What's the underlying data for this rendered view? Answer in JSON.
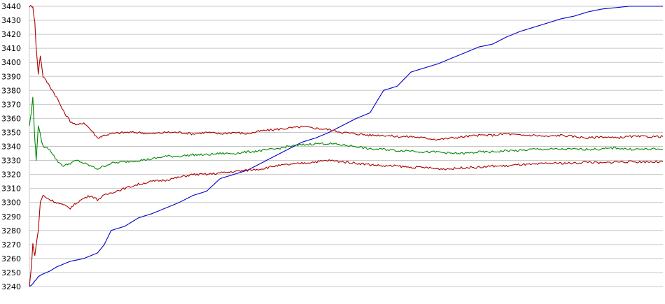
{
  "chart_data": {
    "type": "line",
    "title": "",
    "xlabel": "",
    "ylabel": "",
    "ylim": [
      3240,
      3440
    ],
    "y_ticks": [
      "3440",
      "3430",
      "3420",
      "3410",
      "3400",
      "3390",
      "3380",
      "3370",
      "3360",
      "3350",
      "3340",
      "3330",
      "3320",
      "3310",
      "3300",
      "3290",
      "3280",
      "3270",
      "3260",
      "3250",
      "3240"
    ],
    "grid": "horizontal",
    "legend": "none",
    "x": [
      0,
      3,
      5,
      8,
      10,
      13,
      16,
      20,
      30,
      40,
      50,
      60,
      70,
      80,
      90,
      100,
      110,
      120,
      140,
      160,
      180,
      200,
      220,
      240,
      260,
      280,
      300,
      320,
      340,
      360,
      380,
      400,
      420,
      440,
      460,
      480,
      500,
      520,
      540,
      560,
      580,
      600,
      620,
      640,
      660,
      680,
      700,
      720,
      740,
      760,
      780,
      800,
      820,
      840,
      860,
      880,
      900,
      930
    ],
    "series": [
      {
        "color": "#0000cc",
        "values": [
          3240,
          3241,
          3242,
          3244,
          3245,
          3247,
          3248,
          3249,
          3251,
          3254,
          3256,
          3258,
          3259,
          3260,
          3262,
          3264,
          3270,
          3280,
          3283,
          3289,
          3292,
          3296,
          3300,
          3305,
          3308,
          3317,
          3320,
          3323,
          3328,
          3333,
          3338,
          3343,
          3346,
          3350,
          3355,
          3360,
          3364,
          3380,
          3383,
          3393,
          3396,
          3399,
          3403,
          3407,
          3411,
          3413,
          3418,
          3422,
          3425,
          3428,
          3431,
          3433,
          3436,
          3438,
          3439,
          3440,
          3440,
          3440
        ]
      },
      {
        "color": "#aa0000",
        "values": [
          3440,
          3440,
          3440,
          3428,
          3410,
          3392,
          3405,
          3390,
          3383,
          3375,
          3365,
          3358,
          3355,
          3357,
          3352,
          3346,
          3348,
          3349,
          3350,
          3350,
          3349,
          3350,
          3350,
          3349,
          3350,
          3349,
          3350,
          3349,
          3351,
          3352,
          3353,
          3354,
          3353,
          3352,
          3350,
          3349,
          3348,
          3348,
          3347,
          3347,
          3346,
          3345,
          3346,
          3347,
          3348,
          3348,
          3349,
          3348,
          3348,
          3347,
          3348,
          3347,
          3346,
          3347,
          3346,
          3347,
          3347,
          3347
        ]
      },
      {
        "color": "#008800",
        "values": [
          3355,
          3365,
          3375,
          3345,
          3330,
          3355,
          3348,
          3340,
          3338,
          3330,
          3326,
          3328,
          3330,
          3328,
          3326,
          3324,
          3326,
          3328,
          3329,
          3330,
          3331,
          3333,
          3333,
          3334,
          3334,
          3335,
          3335,
          3336,
          3337,
          3338,
          3340,
          3341,
          3342,
          3342,
          3341,
          3340,
          3338,
          3338,
          3337,
          3337,
          3336,
          3336,
          3335,
          3335,
          3336,
          3336,
          3337,
          3337,
          3338,
          3338,
          3338,
          3338,
          3338,
          3338,
          3339,
          3338,
          3338,
          3338
        ]
      },
      {
        "color": "#aa0000",
        "values": [
          3240,
          3255,
          3270,
          3262,
          3270,
          3280,
          3300,
          3305,
          3302,
          3300,
          3298,
          3296,
          3300,
          3303,
          3305,
          3302,
          3305,
          3307,
          3310,
          3313,
          3315,
          3316,
          3318,
          3320,
          3320,
          3321,
          3322,
          3323,
          3324,
          3326,
          3327,
          3328,
          3329,
          3330,
          3329,
          3328,
          3327,
          3326,
          3326,
          3325,
          3325,
          3324,
          3324,
          3325,
          3325,
          3326,
          3326,
          3327,
          3327,
          3328,
          3328,
          3328,
          3329,
          3328,
          3329,
          3329,
          3329,
          3329
        ]
      }
    ]
  }
}
